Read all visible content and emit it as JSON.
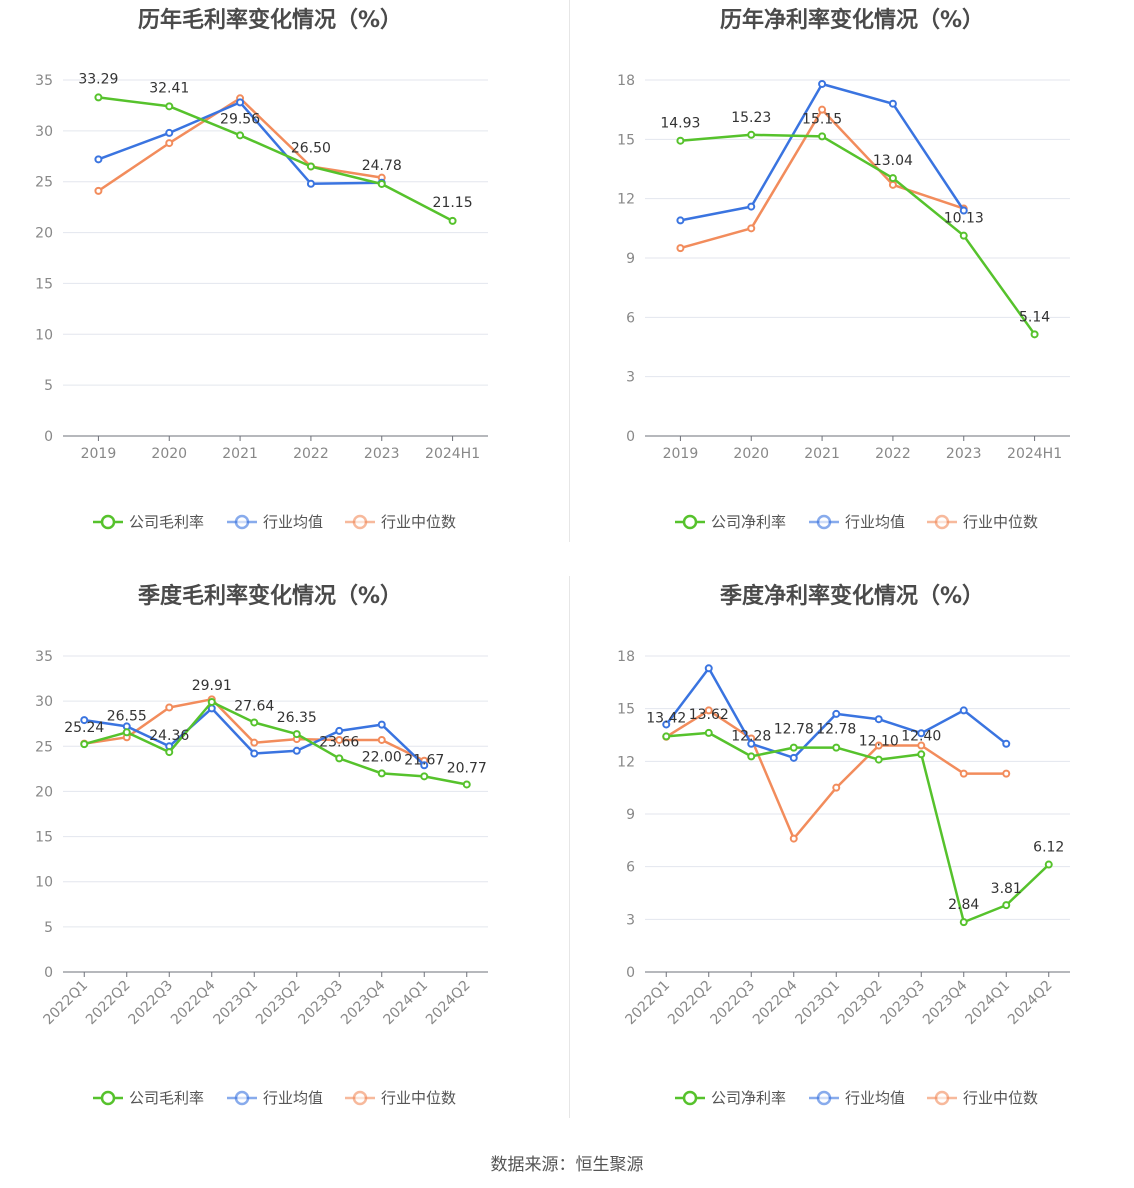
{
  "colors": {
    "company": "#56c22c",
    "avg": "#3a74e0",
    "median": "#f28c5c"
  },
  "source": "数据来源：恒生聚源",
  "chart_data": [
    {
      "type": "line",
      "title": "历年毛利率变化情况（%）",
      "categories": [
        "2019",
        "2020",
        "2021",
        "2022",
        "2023",
        "2024H1"
      ],
      "ylim": [
        0,
        35
      ],
      "yticks": [
        0,
        5,
        10,
        15,
        20,
        25,
        30,
        35
      ],
      "series": [
        {
          "name": "公司毛利率",
          "key": "company",
          "values": [
            33.29,
            32.41,
            29.56,
            26.5,
            24.78,
            21.15
          ],
          "labels": [
            "33.29",
            "32.41",
            "29.56",
            "26.50",
            "24.78",
            "21.15"
          ]
        },
        {
          "name": "行业均值",
          "key": "avg",
          "values": [
            27.2,
            29.8,
            32.8,
            24.8,
            24.9,
            null
          ]
        },
        {
          "name": "行业中位数",
          "key": "median",
          "values": [
            24.1,
            28.8,
            33.2,
            26.5,
            25.4,
            null
          ]
        }
      ]
    },
    {
      "type": "line",
      "title": "历年净利率变化情况（%）",
      "categories": [
        "2019",
        "2020",
        "2021",
        "2022",
        "2023",
        "2024H1"
      ],
      "ylim": [
        0,
        18
      ],
      "yticks": [
        0,
        3,
        6,
        9,
        12,
        15,
        18
      ],
      "series": [
        {
          "name": "公司净利率",
          "key": "company",
          "values": [
            14.93,
            15.23,
            15.15,
            13.04,
            10.13,
            5.14
          ],
          "labels": [
            "14.93",
            "15.23",
            "15.15",
            "13.04",
            "10.13",
            "5.14"
          ]
        },
        {
          "name": "行业均值",
          "key": "avg",
          "values": [
            10.9,
            11.6,
            17.8,
            16.8,
            11.4,
            null
          ]
        },
        {
          "name": "行业中位数",
          "key": "median",
          "values": [
            9.5,
            10.5,
            16.5,
            12.7,
            11.5,
            null
          ]
        }
      ]
    },
    {
      "type": "line",
      "title": "季度毛利率变化情况（%）",
      "categories": [
        "2022Q1",
        "2022Q2",
        "2022Q3",
        "2022Q4",
        "2023Q1",
        "2023Q2",
        "2023Q3",
        "2023Q4",
        "2024Q1",
        "2024Q2"
      ],
      "ylim": [
        0,
        35
      ],
      "yticks": [
        0,
        5,
        10,
        15,
        20,
        25,
        30,
        35
      ],
      "series": [
        {
          "name": "公司毛利率",
          "key": "company",
          "values": [
            25.24,
            26.55,
            24.36,
            29.91,
            27.64,
            26.35,
            23.66,
            22.0,
            21.67,
            20.77
          ],
          "labels": [
            "25.24",
            "26.55",
            "24.36",
            "29.91",
            "27.64",
            "26.35",
            "23.66",
            "22.00",
            "21.67",
            "20.77"
          ]
        },
        {
          "name": "行业均值",
          "key": "avg",
          "values": [
            27.9,
            27.2,
            25.0,
            29.2,
            24.2,
            24.5,
            26.7,
            27.4,
            22.9,
            null
          ]
        },
        {
          "name": "行业中位数",
          "key": "median",
          "values": [
            25.3,
            26.0,
            29.3,
            30.2,
            25.4,
            25.8,
            25.7,
            25.7,
            23.4,
            null
          ]
        }
      ]
    },
    {
      "type": "line",
      "title": "季度净利率变化情况（%）",
      "categories": [
        "2022Q1",
        "2022Q2",
        "2022Q3",
        "2022Q4",
        "2023Q1",
        "2023Q2",
        "2023Q3",
        "2023Q4",
        "2024Q1",
        "2024Q2"
      ],
      "ylim": [
        0,
        18
      ],
      "yticks": [
        0,
        3,
        6,
        9,
        12,
        15,
        18
      ],
      "series": [
        {
          "name": "公司净利率",
          "key": "company",
          "values": [
            13.42,
            13.62,
            12.28,
            12.78,
            12.78,
            12.1,
            12.4,
            2.84,
            3.81,
            6.12
          ],
          "labels": [
            "13.42",
            "13.62",
            "12.28",
            "12.78",
            "12.78",
            "12.10",
            "12.40",
            "2.84",
            "3.81",
            "6.12"
          ]
        },
        {
          "name": "行业均值",
          "key": "avg",
          "values": [
            14.1,
            17.3,
            13.0,
            12.2,
            14.7,
            14.4,
            13.6,
            14.9,
            13.0,
            null
          ]
        },
        {
          "name": "行业中位数",
          "key": "median",
          "values": [
            13.4,
            14.9,
            13.3,
            7.6,
            10.5,
            12.9,
            12.9,
            11.3,
            11.3,
            null
          ]
        }
      ]
    }
  ]
}
